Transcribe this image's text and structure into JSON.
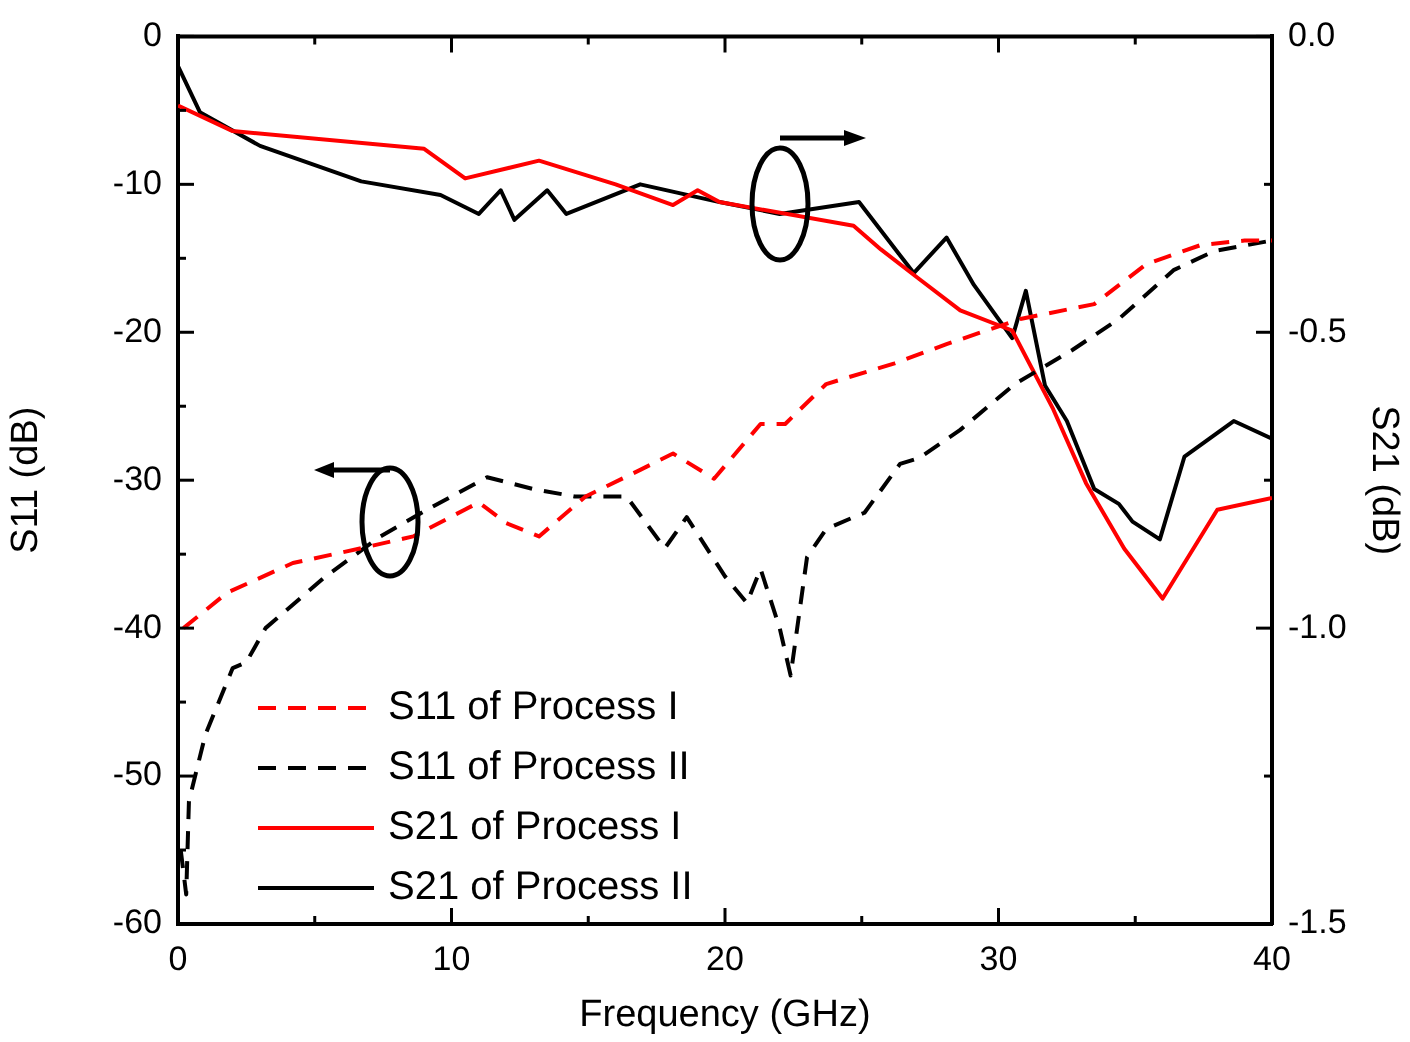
{
  "chart_data": {
    "type": "line",
    "xlabel": "Frequency (GHz)",
    "ylabel": "S11 (dB)",
    "y2label": "S21 (dB)",
    "xlim": [
      0,
      40
    ],
    "xticks": [
      0,
      {
        "value": 5,
        "label": null
      },
      10,
      {
        "value": 15,
        "label": null
      },
      20,
      {
        "value": 25,
        "label": null
      },
      30,
      {
        "value": 35,
        "label": null
      },
      40
    ],
    "ylim": [
      -60,
      0
    ],
    "yticks": [
      -60,
      {
        "value": -55,
        "label": null
      },
      -50,
      {
        "value": -45,
        "label": null
      },
      -40,
      {
        "value": -35,
        "label": null
      },
      -30,
      {
        "value": -25,
        "label": null
      },
      -20,
      {
        "value": -15,
        "label": null
      },
      -10,
      {
        "value": -5,
        "label": null
      },
      0
    ],
    "y2lim": [
      -1.5,
      0
    ],
    "y2ticks": [
      {
        "value": -1.5,
        "label": "-1.5"
      },
      {
        "value": -1.25,
        "label": null
      },
      {
        "value": -1,
        "label": "-1.0"
      },
      {
        "value": -0.75,
        "label": null
      },
      {
        "value": -0.5,
        "label": "-0.5"
      },
      {
        "value": -0.25,
        "label": null
      },
      {
        "value": 0,
        "label": "0.0"
      }
    ],
    "grid": false,
    "legend": "bottom left",
    "marker": "none",
    "series": [
      {
        "name": "S11 of Process I",
        "color": "#ff0000",
        "line_style": "dashed",
        "x": [
          0.2,
          1.8,
          4.2,
          6.7,
          8.6,
          11,
          12,
          13.2,
          14.9,
          16.9,
          18.1,
          19.6,
          21.3,
          22.2,
          23.7,
          26.2,
          28.1,
          30.8,
          33.5,
          35.4,
          37.4,
          39,
          40
        ],
        "values": [
          -40,
          -37.6,
          -35.6,
          -34.6,
          -33.8,
          -31.5,
          -32.9,
          -33.8,
          -31.1,
          -29.3,
          -28.2,
          -29.9,
          -26.2,
          -26.2,
          -23.5,
          -22.1,
          -20.8,
          -19.1,
          -18.1,
          -15.4,
          -14.1,
          -13.8,
          -13.8
        ]
      },
      {
        "name": "S11 of Process II",
        "color": "#000000",
        "line_style": "dashed",
        "x": [
          0.1,
          0.3,
          0.4,
          1,
          2,
          2.5,
          3.2,
          5.4,
          7.4,
          9.1,
          11.3,
          13,
          14.5,
          16.4,
          17.8,
          18.6,
          20,
          20.8,
          21.3,
          22,
          22.4,
          23,
          23.7,
          24.7,
          25.1,
          26.4,
          27.1,
          28.6,
          30.6,
          32.7,
          34.4,
          36.4,
          37.9,
          40
        ],
        "values": [
          -55,
          -58,
          -51.7,
          -47.2,
          -42.7,
          -42.3,
          -40,
          -36.5,
          -33.8,
          -32,
          -29.8,
          -30.6,
          -31.1,
          -31.1,
          -34.6,
          -32.5,
          -36.5,
          -38.3,
          -36,
          -40,
          -43.2,
          -35.2,
          -33.3,
          -32.5,
          -32.2,
          -28.9,
          -28.5,
          -26.6,
          -23.5,
          -21.2,
          -19.1,
          -15.8,
          -14.5,
          -13.8
        ]
      },
      {
        "name": "S21 of Process I",
        "color": "#ff0000",
        "line_style": "solid",
        "axis": "y2",
        "x": [
          0,
          2,
          9,
          10.5,
          13.2,
          16,
          18.1,
          19,
          19.8,
          24.7,
          25.7,
          27.1,
          28.6,
          30.5,
          32,
          33.2,
          34.6,
          36,
          38,
          40
        ],
        "values": [
          -0.117,
          -0.16,
          -0.19,
          -0.24,
          -0.21,
          -0.25,
          -0.285,
          -0.26,
          -0.28,
          -0.32,
          -0.36,
          -0.41,
          -0.463,
          -0.497,
          -0.63,
          -0.755,
          -0.866,
          -0.95,
          -0.8,
          -0.78
        ]
      },
      {
        "name": "S21 of Process II",
        "color": "#000000",
        "line_style": "solid",
        "axis": "y2",
        "x": [
          0,
          0.8,
          3,
          6.7,
          9.6,
          11,
          11.8,
          12.3,
          13.5,
          14.2,
          16.9,
          19.8,
          22,
          24.9,
          26.9,
          28.1,
          29.1,
          30.5,
          31,
          31.7,
          32.5,
          33.5,
          34.4,
          34.9,
          35.9,
          36.8,
          38.6,
          40
        ],
        "values": [
          -0.05,
          -0.128,
          -0.185,
          -0.245,
          -0.268,
          -0.3,
          -0.26,
          -0.31,
          -0.26,
          -0.3,
          -0.25,
          -0.28,
          -0.3,
          -0.28,
          -0.4,
          -0.34,
          -0.42,
          -0.51,
          -0.43,
          -0.59,
          -0.65,
          -0.765,
          -0.79,
          -0.82,
          -0.85,
          -0.71,
          -0.65,
          -0.68
        ]
      }
    ]
  }
}
